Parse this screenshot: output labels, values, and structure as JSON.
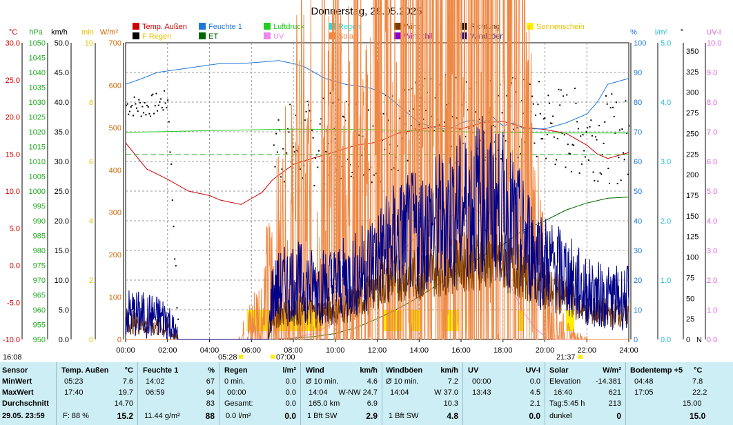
{
  "chart_data": {
    "type": "line",
    "title": "Donnerstag, 29.05.2025",
    "x_ticks": [
      "00:00",
      "02:00",
      "04:00",
      "06:00",
      "08:00",
      "10:00",
      "12:00",
      "14:00",
      "16:00",
      "18:00",
      "20:00",
      "22:00",
      "24:00"
    ],
    "legend": [
      {
        "name": "Temp. Außen",
        "color": "#cc0000"
      },
      {
        "name": "Feuchte 1",
        "color": "#1f78d8"
      },
      {
        "name": "Luftdruck",
        "color": "#22cc22"
      },
      {
        "name": "Regen",
        "color": "#22dddd"
      },
      {
        "name": "Wind",
        "color": "#7a3c00"
      },
      {
        "name": "Richtung",
        "color": "#000000"
      },
      {
        "name": "Sonnenschein",
        "color": "#ffee00"
      },
      {
        "name": "F Regen",
        "color": "#000000"
      },
      {
        "name": "ET",
        "color": "#006600"
      },
      {
        "name": "UV",
        "color": "#ee88ee"
      },
      {
        "name": "Solar",
        "color": "#ee8844"
      },
      {
        "name": "Windchill",
        "color": "#8800cc"
      },
      {
        "name": "Windböen",
        "color": "#000088"
      }
    ],
    "left_axes": [
      {
        "unit": "°C",
        "color": "#cc0000",
        "ticks": [
          "30.0",
          "25.0",
          "20.0",
          "15.0",
          "10.0",
          "5.0",
          "0.0",
          "-5.0",
          "-10.0"
        ]
      },
      {
        "unit": "hPa",
        "color": "#22aa22",
        "ticks": [
          "1050",
          "1045",
          "1040",
          "1035",
          "1030",
          "1025",
          "1020",
          "1015",
          "1010",
          "1005",
          "1000",
          "995",
          "990",
          "985",
          "980",
          "975",
          "970",
          "965",
          "960",
          "955",
          "950"
        ]
      },
      {
        "unit": "km/h",
        "color": "#000000",
        "ticks": [
          "50.0",
          "45.0",
          "40.0",
          "35.0",
          "30.0",
          "25.0",
          "20.0",
          "15.0",
          "10.0",
          "5.0",
          "0.0"
        ]
      },
      {
        "unit": "min",
        "color": "#e6c200",
        "ticks": [
          "10",
          "8",
          "6",
          "4",
          "2",
          "0"
        ]
      },
      {
        "unit": "W/m²",
        "color": "#cc6600",
        "ticks": [
          "700",
          "600",
          "500",
          "400",
          "300",
          "200",
          "100",
          "0"
        ]
      }
    ],
    "right_axes": [
      {
        "unit": "%",
        "color": "#1f78d8",
        "ticks": [
          "100",
          "90",
          "80",
          "70",
          "60",
          "50",
          "40",
          "30",
          "20",
          "10",
          "0"
        ]
      },
      {
        "unit": "l/m²",
        "color": "#22bbdd",
        "ticks": [
          "5.0",
          "4.0",
          "3.0",
          "2.0",
          "1.0",
          "0.0"
        ]
      },
      {
        "unit": "°",
        "color": "#000000",
        "ticks": [
          "350",
          "325",
          "300",
          "275",
          "250",
          "225",
          "200",
          "175",
          "150",
          "125",
          "100",
          "75",
          "50",
          "25",
          "0"
        ]
      },
      {
        "unit": "UV-I",
        "color": "#dd66dd",
        "ticks": [
          "10.0",
          "9.0",
          "8.0",
          "7.0",
          "6.0",
          "5.0",
          "4.0",
          "3.0",
          "2.0",
          "1.0",
          "0.0"
        ]
      }
    ],
    "series": [
      {
        "name": "Temp. Außen",
        "unit": "°C",
        "x": [
          0,
          1,
          2,
          3,
          4,
          4.5,
          5.5,
          6.5,
          7,
          8,
          9,
          10,
          11,
          12,
          13,
          14,
          15,
          16,
          17,
          18,
          19,
          20,
          21,
          22,
          22.5,
          23,
          24
        ],
        "values": [
          16.5,
          13,
          11.6,
          10,
          9.4,
          8.8,
          8.2,
          9.8,
          11.5,
          13.6,
          14.5,
          15.3,
          16.2,
          16.6,
          17.8,
          18.3,
          18.8,
          18.4,
          19.2,
          19.4,
          18.6,
          18.3,
          17.8,
          16.2,
          15.0,
          14.4,
          15.2
        ]
      },
      {
        "name": "Feuchte 1",
        "unit": "%",
        "x": [
          0,
          0.8,
          1.5,
          2.5,
          3.5,
          4.5,
          5.5,
          6.5,
          7.3,
          8,
          8.5,
          9.5,
          10.5,
          11.5,
          12,
          12.5,
          13,
          13.5,
          14,
          14.5,
          15,
          15.5,
          16,
          16.5,
          17,
          17.5,
          18,
          18.5,
          19,
          19.5,
          20,
          21,
          22,
          22.5,
          23,
          24
        ],
        "values": [
          86,
          88,
          90,
          91,
          92,
          93,
          93,
          93.5,
          94,
          93,
          92,
          88,
          86,
          85,
          84,
          82,
          79,
          76,
          73,
          72,
          71,
          71,
          73,
          74,
          73,
          75,
          72,
          73,
          71,
          71,
          71,
          73,
          76,
          80,
          86,
          88
        ]
      },
      {
        "name": "Luftdruck",
        "unit": "hPa",
        "x": [
          0,
          4,
          8,
          12,
          16,
          20,
          24
        ],
        "values": [
          1019.8,
          1020.4,
          1020.9,
          1020.7,
          1020.0,
          1019.6,
          1019.6
        ]
      },
      {
        "name": "Luftdruck Referenz",
        "unit": "hPa",
        "x": [
          0,
          24
        ],
        "values": [
          1012.3,
          1012.3
        ]
      },
      {
        "name": "ET",
        "unit": "l/m²",
        "x": [
          0,
          7,
          8,
          9,
          10,
          11,
          12,
          13,
          14,
          15,
          16,
          17,
          18,
          19,
          20,
          21,
          22,
          23,
          24
        ],
        "values": [
          0,
          0,
          0.02,
          0.05,
          0.1,
          0.2,
          0.35,
          0.52,
          0.72,
          0.95,
          1.15,
          1.4,
          1.6,
          1.85,
          2.0,
          2.18,
          2.3,
          2.38,
          2.4
        ]
      },
      {
        "name": "UV",
        "unit": "UV-I",
        "x": [
          0,
          6.5,
          8,
          9,
          10,
          11,
          12,
          13,
          14,
          15,
          16,
          16.5,
          17,
          17.5,
          18,
          18.5,
          19,
          19.5,
          20,
          20.5,
          24
        ],
        "values": [
          0,
          0,
          0.05,
          0.2,
          0.6,
          1.2,
          2.0,
          2.8,
          3.6,
          4.0,
          4.3,
          4.5,
          4.2,
          3.5,
          2.4,
          1.6,
          0.9,
          0.4,
          0.1,
          0,
          0
        ]
      },
      {
        "name": "Solar",
        "unit": "W/m²",
        "x": [
          0,
          5.4,
          6,
          6.5,
          7,
          7.5,
          8,
          8.3,
          8.6,
          9,
          9.2,
          9.5,
          9.8,
          10,
          10.5,
          11,
          11.3,
          11.6,
          12,
          12.3,
          12.6,
          13,
          13.3,
          13.6,
          14,
          14.3,
          14.6,
          15,
          15.3,
          15.6,
          16,
          16.2,
          16.4,
          16.6,
          16.8,
          17,
          17.3,
          17.6,
          17.8,
          18,
          18.3,
          18.6,
          19,
          19.3,
          19.6,
          20,
          20.5,
          21,
          21.5,
          22,
          24
        ],
        "values": [
          0,
          0,
          25,
          50,
          90,
          130,
          150,
          240,
          170,
          220,
          120,
          300,
          200,
          320,
          180,
          380,
          220,
          160,
          470,
          260,
          380,
          300,
          520,
          380,
          560,
          420,
          300,
          380,
          260,
          430,
          350,
          480,
          520,
          560,
          460,
          620,
          420,
          520,
          400,
          560,
          460,
          380,
          300,
          200,
          120,
          60,
          30,
          8,
          2,
          0,
          0
        ]
      },
      {
        "name": "Wind",
        "unit": "km/h",
        "x": [
          0,
          1,
          2,
          2.5,
          6.8,
          7,
          8,
          9,
          10,
          11,
          12,
          13,
          14,
          15,
          16,
          17,
          18,
          19,
          20,
          21,
          22,
          23,
          24
        ],
        "values": [
          3,
          2.5,
          2,
          0,
          0,
          4,
          5,
          4.5,
          5,
          6,
          9,
          10.5,
          11,
          12,
          13,
          13.5,
          13,
          11,
          9,
          7,
          5,
          4.5,
          4.5
        ]
      },
      {
        "name": "Windböen",
        "unit": "km/h",
        "x": [
          0,
          1,
          2,
          2.5,
          6.8,
          7,
          8,
          9,
          10,
          11,
          12,
          13,
          14,
          15,
          16,
          17,
          18,
          19,
          20,
          21,
          22,
          23,
          24
        ],
        "values": [
          4.5,
          4,
          3.5,
          0,
          0,
          8,
          10,
          9,
          9.5,
          11,
          14,
          17,
          18,
          20,
          22,
          24,
          22,
          17,
          13,
          11,
          8,
          7,
          7
        ]
      },
      {
        "name": "Richtung",
        "unit": "°",
        "x": [
          0,
          1,
          1.5,
          2,
          2.5,
          7,
          8,
          9,
          10,
          11,
          12,
          13,
          14,
          15,
          16,
          17,
          18,
          19,
          20,
          21,
          22,
          23,
          24
        ],
        "values": [
          285,
          283,
          287,
          290,
          0,
          240,
          235,
          240,
          248,
          250,
          245,
          258,
          262,
          268,
          268,
          270,
          272,
          265,
          262,
          255,
          250,
          245,
          240
        ]
      },
      {
        "name": "Sonnenschein",
        "unit": "min",
        "x": [
          5.8,
          6.9,
          7.2,
          9.4,
          12.3,
          13.2,
          13.5,
          14.1,
          15.1,
          15.9,
          16.2,
          16.3,
          18.7,
          19,
          21.0,
          21.4
        ],
        "values": [
          1,
          0,
          1,
          0,
          1,
          0,
          1,
          0,
          1,
          0,
          1,
          0,
          1,
          0,
          1,
          0
        ]
      }
    ],
    "markers": {
      "sunrise": "05:28",
      "solar_noon": "07:00",
      "sunset": "21:37",
      "now": "16:08"
    }
  },
  "stats": {
    "sensor": {
      "header": "Sensor",
      "min": "MinWert",
      "max": "MaxWert",
      "avg": "Durchschnitt",
      "date": "29.05. 23:59"
    },
    "temp": {
      "header": "Temp. Außen",
      "unit": "°C",
      "min_time": "05:23",
      "min": "7.6",
      "max_time": "17:40",
      "max": "19.7",
      "avg": "14.70",
      "cur_label": "F: 88 %",
      "cur": "15.2"
    },
    "feuchte": {
      "header": "Feuchte 1",
      "unit": "%",
      "min_time": "14:02",
      "min": "67",
      "max_time": "06:59",
      "max": "94",
      "avg": "83",
      "cur_label": "11.44 g/m²",
      "cur": "88"
    },
    "regen": {
      "header": "Regen",
      "unit": "l/m²",
      "r1_label": "0 min.",
      "r1": "0.0",
      "r2_label": "00:00",
      "r2": "0.0",
      "r3_label": "Gesamt:",
      "r3": "0.0",
      "cur_label": "0.0 l/m²",
      "cur": "0.0"
    },
    "wind": {
      "header": "Wind",
      "unit": "km/h",
      "r1_label": "Ø 10 min.",
      "r1": "4.6",
      "r2_time": "14:04",
      "r2_dir": "W-NW 24.7",
      "r3_label": "165.0 km",
      "r3": "6.9",
      "cur_label": "1 Bft SW",
      "cur": "2.9"
    },
    "boeen": {
      "header": "Windböen",
      "unit": "km/h",
      "r1_label": "Ø 10 min.",
      "r1": "7.2",
      "r2_time": "14:04",
      "r2": "W 37.0",
      "r3": "10.3",
      "cur_label": "1 Bft SW",
      "cur": "4.8"
    },
    "uv": {
      "header": "UV",
      "unit": "UV-I",
      "r1_time": "00:00",
      "r1": "0.0",
      "r2_time": "13:43",
      "r2": "4.5",
      "r3": "2.1",
      "cur": "0.0"
    },
    "solar": {
      "header": "Solar",
      "unit": "W/m²",
      "r1_label": "Elevation",
      "r1": "-14.381",
      "r2_time": "16:40",
      "r2": "621",
      "r3_label": "Tag:5:45 h",
      "r3": "213",
      "cur_label": "dunkel",
      "cur": "0"
    },
    "boden": {
      "header": "Bodentemp +5",
      "unit": "°C",
      "r1_time": "04:48",
      "r1": "7.8",
      "r2_time": "17:05",
      "r2": "22.2",
      "r3": "15.00",
      "cur": "15.0"
    }
  }
}
